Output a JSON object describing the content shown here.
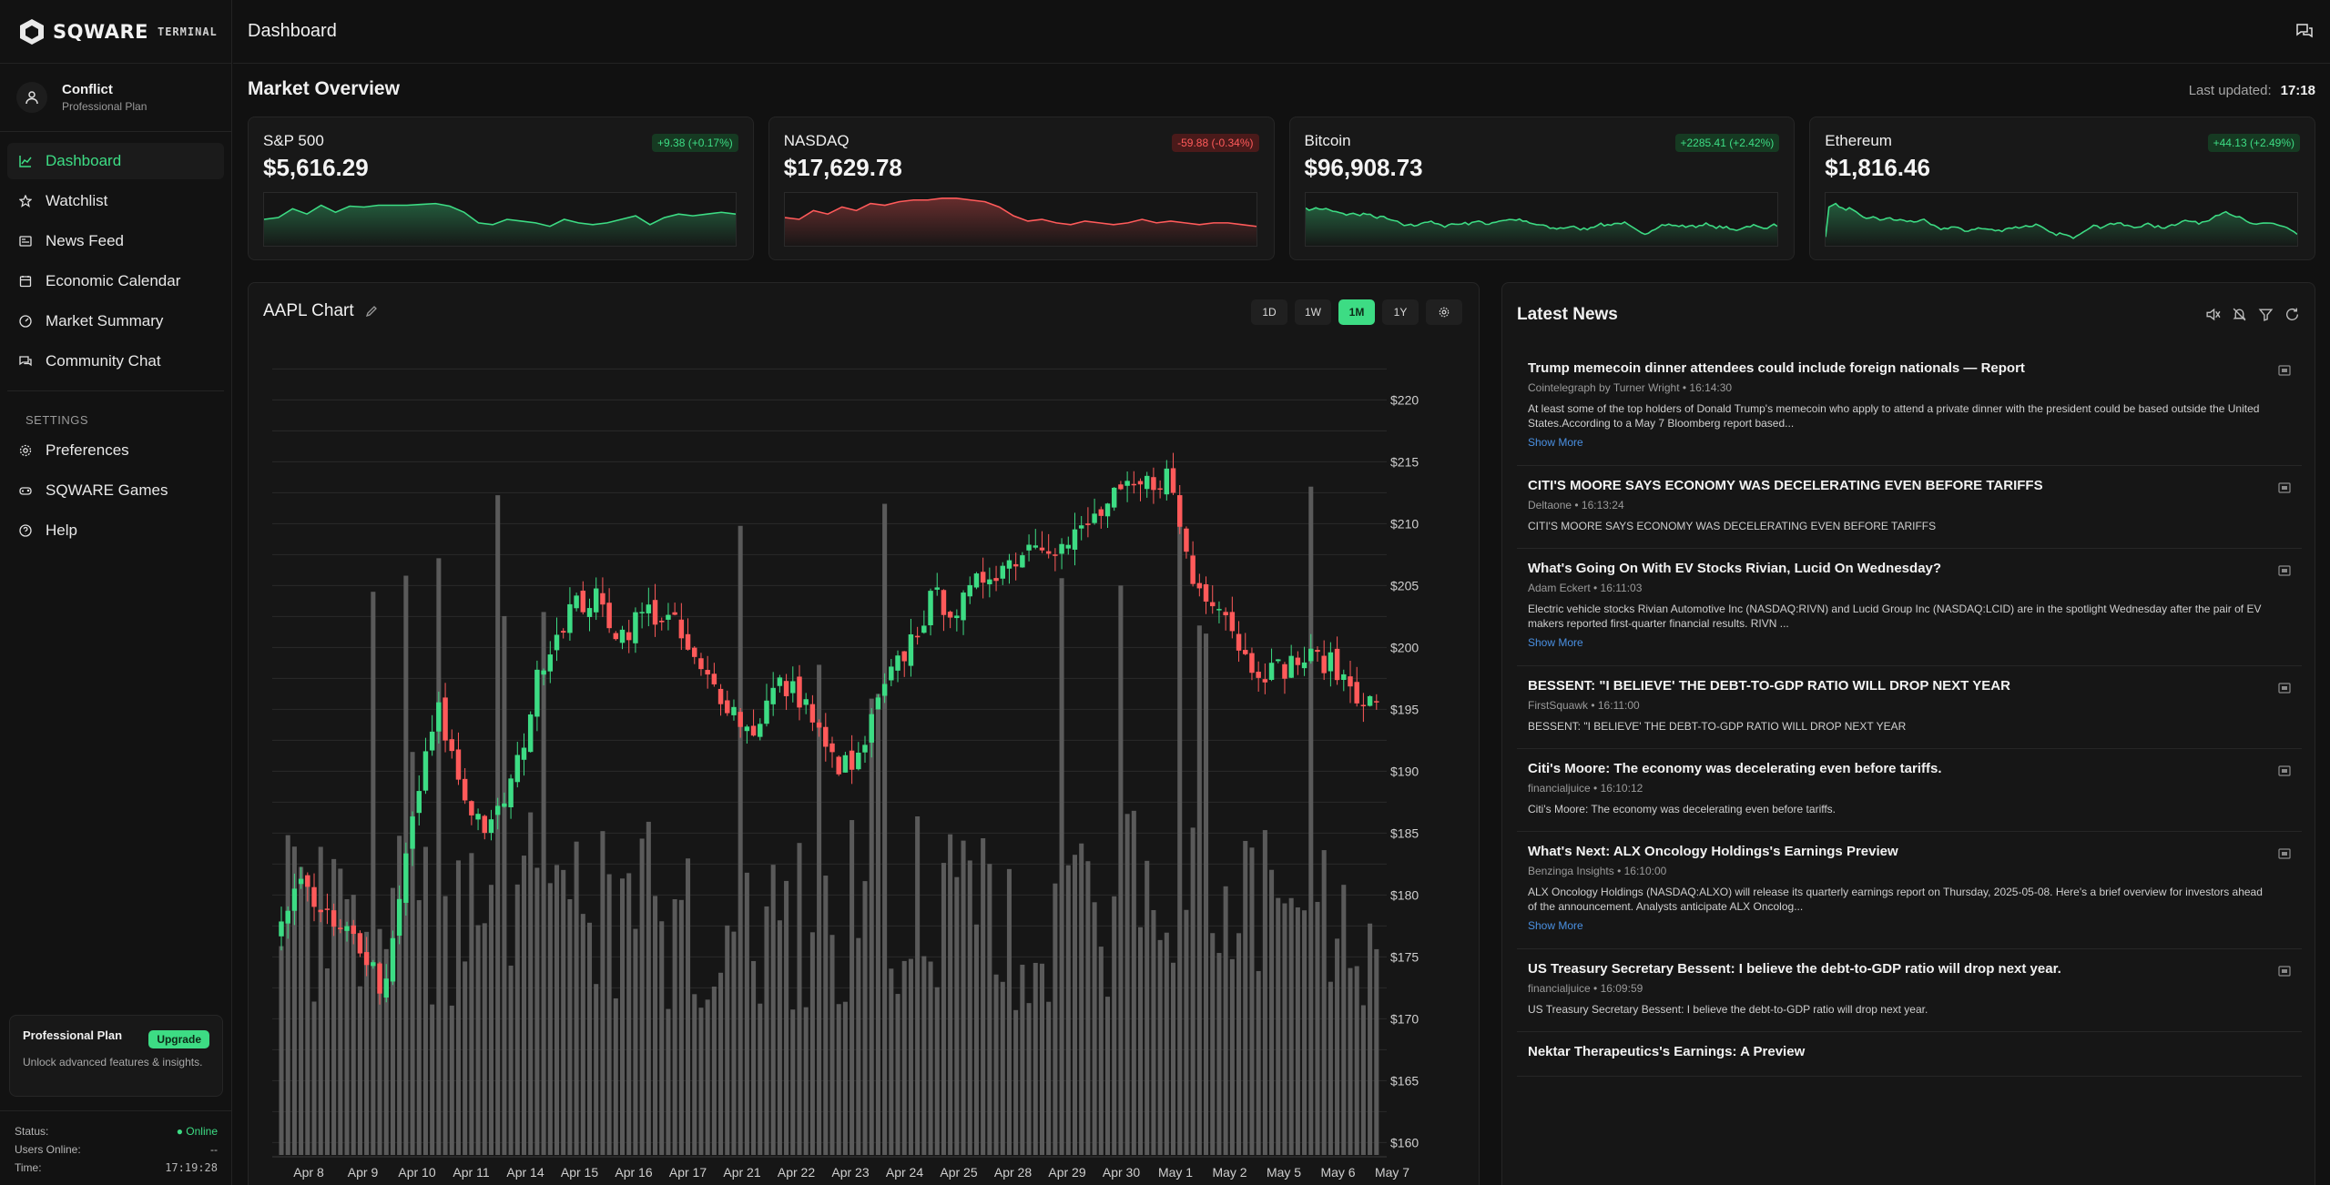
{
  "app": {
    "logo_text": "SQWARE",
    "logo_sub": "TERMINAL"
  },
  "user": {
    "name": "Conflict",
    "plan": "Professional Plan"
  },
  "nav": {
    "items": [
      {
        "label": "Dashboard",
        "icon": "chart-line-icon"
      },
      {
        "label": "Watchlist",
        "icon": "star-icon"
      },
      {
        "label": "News Feed",
        "icon": "newspaper-icon"
      },
      {
        "label": "Economic Calendar",
        "icon": "calendar-icon"
      },
      {
        "label": "Market Summary",
        "icon": "gauge-icon"
      },
      {
        "label": "Community Chat",
        "icon": "chat-icon"
      }
    ],
    "settings_label": "SETTINGS",
    "settings_items": [
      {
        "label": "Preferences",
        "icon": "gear-icon"
      },
      {
        "label": "SQWARE Games",
        "icon": "gamepad-icon"
      },
      {
        "label": "Help",
        "icon": "help-icon"
      }
    ]
  },
  "promo": {
    "title": "Professional Plan",
    "button": "Upgrade",
    "desc": "Unlock advanced features & insights."
  },
  "status": {
    "status_label": "Status:",
    "status_value": "● Online",
    "users_label": "Users Online:",
    "users_value": "--",
    "time_label": "Time:",
    "time_value": "17:19:28"
  },
  "header": {
    "title": "Dashboard"
  },
  "overview": {
    "title": "Market Overview",
    "updated_label": "Last updated:",
    "updated_value": "17:18"
  },
  "colors": {
    "up": "#3ddc84",
    "down": "#ff5a5a",
    "accent": "#3ddc84"
  },
  "tickers": [
    {
      "name": "S&P 500",
      "price": "$5,616.29",
      "change": "+9.38 (+0.17%)",
      "dir": "up"
    },
    {
      "name": "NASDAQ",
      "price": "$17,629.78",
      "change": "-59.88 (-0.34%)",
      "dir": "down"
    },
    {
      "name": "Bitcoin",
      "price": "$96,908.73",
      "change": "+2285.41 (+2.42%)",
      "dir": "up"
    },
    {
      "name": "Ethereum",
      "price": "$1,816.46",
      "change": "+44.13 (+2.49%)",
      "dir": "up"
    }
  ],
  "chart": {
    "title": "AAPL Chart",
    "timeframes": [
      "1D",
      "1W",
      "1M",
      "1Y"
    ],
    "active_timeframe": "1M"
  },
  "chart_data": {
    "type": "candlestick",
    "title": "AAPL Chart",
    "y_ticks": [
      "$220",
      "$215",
      "$210",
      "$205",
      "$200",
      "$195",
      "$190",
      "$185",
      "$180",
      "$175",
      "$170",
      "$165",
      "$160"
    ],
    "ylim": [
      159,
      224
    ],
    "x_ticks": [
      "Apr 8",
      "Apr 9",
      "Apr 10",
      "Apr 11",
      "Apr 14",
      "Apr 15",
      "Apr 16",
      "Apr 17",
      "Apr 21",
      "Apr 22",
      "Apr 23",
      "Apr 24",
      "Apr 25",
      "Apr 28",
      "Apr 29",
      "Apr 30",
      "May 1",
      "May 2",
      "May 5",
      "May 6",
      "May 7"
    ],
    "close_path": [
      178,
      181,
      177,
      176,
      172,
      186,
      195,
      188,
      185,
      190,
      199,
      203,
      204,
      201,
      203,
      202,
      198,
      196,
      193,
      197,
      196,
      191,
      190,
      196,
      200,
      204,
      203,
      206,
      207,
      209,
      208,
      210,
      212,
      213,
      214,
      205,
      204,
      199,
      198,
      199,
      199,
      197,
      195
    ]
  },
  "news": {
    "title": "Latest News",
    "items": [
      {
        "headline": "Trump memecoin dinner attendees could include foreign nationals — Report",
        "meta": "Cointelegraph by Turner Wright • 16:14:30",
        "body": "At least some of the top holders of Donald Trump's memecoin who apply to attend a private dinner with the president could be based outside the United States.According to a May 7 Bloomberg report based...",
        "more": "Show More"
      },
      {
        "headline": "CITI'S MOORE SAYS ECONOMY WAS DECELERATING EVEN BEFORE TARIFFS",
        "meta": "Deltaone • 16:13:24",
        "body": "CITI'S MOORE SAYS ECONOMY WAS DECELERATING EVEN BEFORE TARIFFS",
        "more": ""
      },
      {
        "headline": "What's Going On With EV Stocks Rivian, Lucid On Wednesday?",
        "meta": "Adam Eckert • 16:11:03",
        "body": "Electric vehicle stocks Rivian Automotive Inc (NASDAQ:RIVN) and Lucid Group Inc (NASDAQ:LCID) are in the spotlight Wednesday after the pair of EV makers reported first-quarter financial results. RIVN ...",
        "more": "Show More"
      },
      {
        "headline": "BESSENT: \"I BELIEVE' THE DEBT-TO-GDP RATIO WILL DROP NEXT YEAR",
        "meta": "FirstSquawk • 16:11:00",
        "body": "BESSENT: \"I BELIEVE' THE DEBT-TO-GDP RATIO WILL DROP NEXT YEAR",
        "more": ""
      },
      {
        "headline": "Citi's Moore: The economy was decelerating even before tariffs.",
        "meta": "financialjuice • 16:10:12",
        "body": "Citi's Moore: The economy was decelerating even before tariffs.",
        "more": ""
      },
      {
        "headline": "What's Next: ALX Oncology Holdings's Earnings Preview",
        "meta": "Benzinga Insights • 16:10:00",
        "body": "ALX Oncology Holdings (NASDAQ:ALXO) will release its quarterly earnings report on Thursday, 2025-05-08. Here's a brief overview for investors ahead of the announcement. Analysts anticipate ALX Oncolog...",
        "more": "Show More"
      },
      {
        "headline": "US Treasury Secretary Bessent: I believe the debt-to-GDP ratio will drop next year.",
        "meta": "financialjuice • 16:09:59",
        "body": "US Treasury Secretary Bessent: I believe the debt-to-GDP ratio will drop next year.",
        "more": ""
      },
      {
        "headline": "Nektar Therapeutics's Earnings: A Preview",
        "meta": "",
        "body": "",
        "more": ""
      }
    ]
  }
}
